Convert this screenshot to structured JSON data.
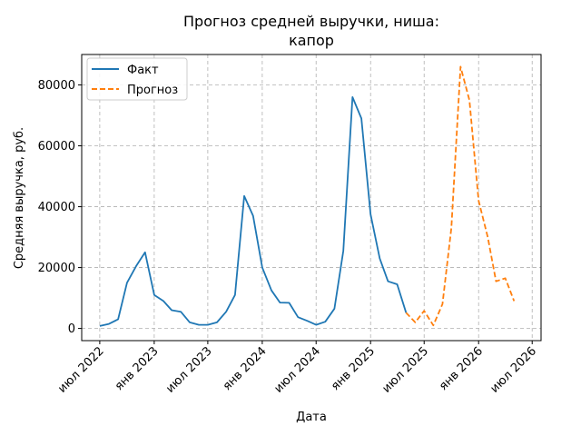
{
  "chart_data": {
    "type": "line",
    "title_lines": [
      "Прогноз средней выручки, ниша:",
      "капор"
    ],
    "xlabel": "Дата",
    "ylabel": "Средняя выручка, руб.",
    "x_ticks": [
      {
        "date": "2022-07-01",
        "label": "июл 2022"
      },
      {
        "date": "2023-01-01",
        "label": "янв 2023"
      },
      {
        "date": "2023-07-01",
        "label": "июл 2023"
      },
      {
        "date": "2024-01-01",
        "label": "янв 2024"
      },
      {
        "date": "2024-07-01",
        "label": "июл 2024"
      },
      {
        "date": "2025-01-01",
        "label": "янв 2025"
      },
      {
        "date": "2025-07-01",
        "label": "июл 2025"
      },
      {
        "date": "2026-01-01",
        "label": "янв 2026"
      },
      {
        "date": "2026-07-01",
        "label": "июл 2026"
      }
    ],
    "y_ticks": [
      0,
      20000,
      40000,
      60000,
      80000
    ],
    "y_tick_labels": [
      "0",
      "20000",
      "40000",
      "60000",
      "80000"
    ],
    "xlim": [
      "2022-05-01",
      "2026-07-31"
    ],
    "ylim": [
      -4000,
      90000
    ],
    "grid": true,
    "legend_position": "top-left",
    "series": [
      {
        "name": "Факт",
        "color": "#1f77b4",
        "style": "solid",
        "points": [
          [
            "2022-07-01",
            800
          ],
          [
            "2022-08-01",
            1500
          ],
          [
            "2022-09-01",
            3000
          ],
          [
            "2022-10-01",
            15000
          ],
          [
            "2022-11-01",
            20500
          ],
          [
            "2022-12-01",
            25000
          ],
          [
            "2023-01-01",
            11000
          ],
          [
            "2023-02-01",
            9000
          ],
          [
            "2023-03-01",
            6000
          ],
          [
            "2023-04-01",
            5500
          ],
          [
            "2023-05-01",
            2000
          ],
          [
            "2023-06-01",
            1200
          ],
          [
            "2023-07-01",
            1200
          ],
          [
            "2023-08-01",
            2000
          ],
          [
            "2023-09-01",
            5500
          ],
          [
            "2023-10-01",
            11000
          ],
          [
            "2023-11-01",
            43500
          ],
          [
            "2023-12-01",
            37000
          ],
          [
            "2024-01-01",
            20000
          ],
          [
            "2024-02-01",
            12500
          ],
          [
            "2024-03-01",
            8500
          ],
          [
            "2024-04-01",
            8400
          ],
          [
            "2024-05-01",
            3700
          ],
          [
            "2024-06-01",
            2500
          ],
          [
            "2024-07-01",
            1200
          ],
          [
            "2024-08-01",
            2200
          ],
          [
            "2024-09-01",
            6500
          ],
          [
            "2024-10-01",
            25500
          ],
          [
            "2024-11-01",
            76000
          ],
          [
            "2024-12-01",
            69000
          ],
          [
            "2025-01-01",
            37500
          ],
          [
            "2025-02-01",
            23000
          ],
          [
            "2025-03-01",
            15500
          ],
          [
            "2025-04-01",
            14500
          ],
          [
            "2025-05-01",
            5200
          ]
        ]
      },
      {
        "name": "Прогноз",
        "color": "#ff7f0e",
        "style": "dashed",
        "points": [
          [
            "2025-05-01",
            5200
          ],
          [
            "2025-06-01",
            2000
          ],
          [
            "2025-07-01",
            5800
          ],
          [
            "2025-08-01",
            1000
          ],
          [
            "2025-09-01",
            8000
          ],
          [
            "2025-10-01",
            33000
          ],
          [
            "2025-11-01",
            86000
          ],
          [
            "2025-12-01",
            75000
          ],
          [
            "2026-01-01",
            42000
          ],
          [
            "2026-02-01",
            30000
          ],
          [
            "2026-03-01",
            15500
          ],
          [
            "2026-04-01",
            16500
          ],
          [
            "2026-05-01",
            9000
          ]
        ]
      }
    ]
  }
}
